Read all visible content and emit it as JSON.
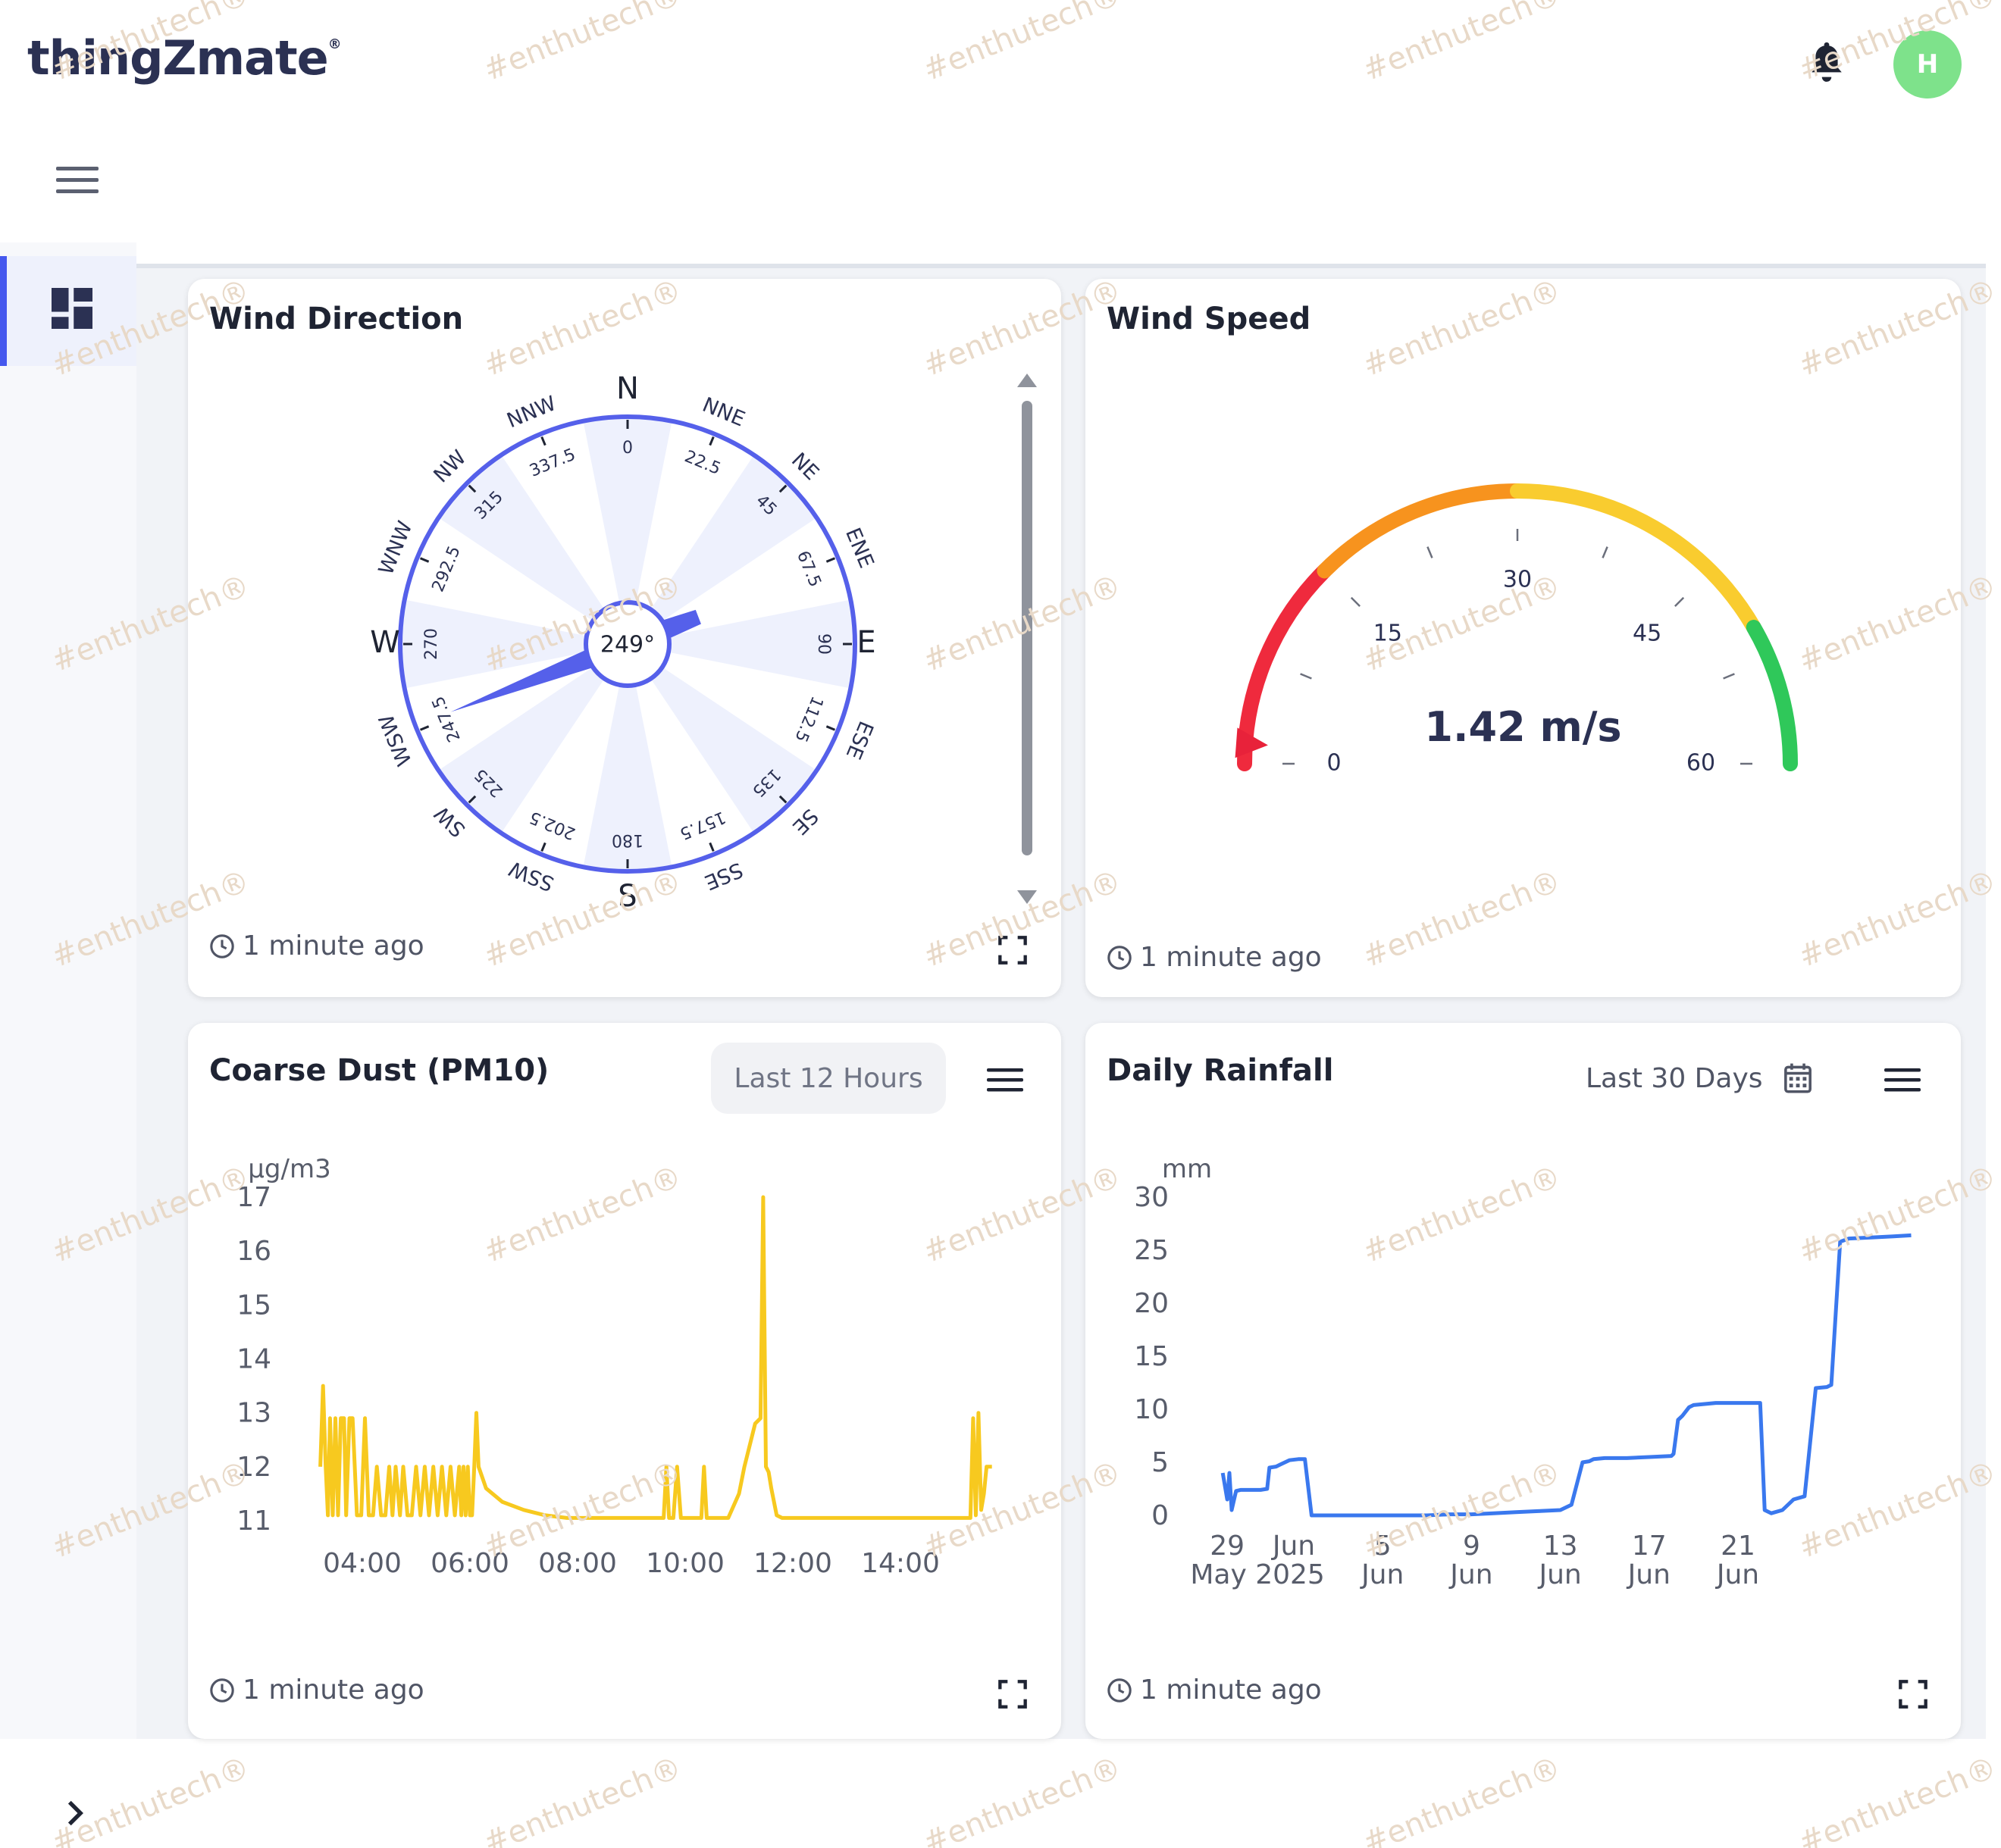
{
  "header": {
    "logo_text": "thingZmate",
    "logo_mark": "®",
    "notifications_icon": "bell-icon",
    "avatar_initial": "H",
    "avatar_color": "#7ee28b"
  },
  "sidebar": {
    "menu_icon": "hamburger-icon",
    "items": [
      {
        "icon": "dashboard-icon",
        "active": true
      }
    ],
    "expand_icon": "chevron-right-icon",
    "accent_color": "#4558ee"
  },
  "watermark": "#enthutech®",
  "widgets": {
    "wind_direction": {
      "title": "Wind Direction",
      "value_deg": 249,
      "value_label": "249°",
      "cardinals": [
        "N",
        "E",
        "S",
        "W"
      ],
      "points": [
        {
          "name": "N",
          "deg": "0"
        },
        {
          "name": "NNE",
          "deg": "22.5"
        },
        {
          "name": "NE",
          "deg": "45"
        },
        {
          "name": "ENE",
          "deg": "67.5"
        },
        {
          "name": "E",
          "deg": "90"
        },
        {
          "name": "ESE",
          "deg": "112.5"
        },
        {
          "name": "SE",
          "deg": "135"
        },
        {
          "name": "SSE",
          "deg": "157.5"
        },
        {
          "name": "S",
          "deg": "180"
        },
        {
          "name": "SSW",
          "deg": "202.5"
        },
        {
          "name": "SW",
          "deg": "225"
        },
        {
          "name": "WSW",
          "deg": "247.5"
        },
        {
          "name": "W",
          "deg": "270"
        },
        {
          "name": "WNW",
          "deg": "292.5"
        },
        {
          "name": "NW",
          "deg": "315"
        },
        {
          "name": "NNW",
          "deg": "337.5"
        }
      ],
      "updated": "1 minute ago",
      "color": "#5560ea"
    },
    "wind_speed": {
      "title": "Wind Speed",
      "value": 1.42,
      "value_label": "1.42 m/s",
      "min": 0,
      "max": 60,
      "ticks": [
        "0",
        "15",
        "30",
        "45",
        "60"
      ],
      "bands": [
        {
          "from": 0,
          "to": 15,
          "color": "#ef2a3d"
        },
        {
          "from": 15,
          "to": 30,
          "color": "#f7931e"
        },
        {
          "from": 30,
          "to": 50,
          "color": "#f9cc2f"
        },
        {
          "from": 50,
          "to": 60,
          "color": "#2fc85a"
        }
      ],
      "pointer_color": "#e8223a",
      "updated": "1 minute ago"
    },
    "coarse_dust": {
      "title": "Coarse Dust (PM10)",
      "range_label": "Last 12 Hours",
      "updated": "1 minute ago"
    },
    "daily_rainfall": {
      "title": "Daily Rainfall",
      "range_label": "Last 30 Days",
      "updated": "1 minute ago"
    }
  },
  "chart_data": [
    {
      "type": "line",
      "title": "Coarse Dust (PM10)",
      "ylabel": "µg/m3",
      "ylim": [
        11,
        17
      ],
      "yticks": [
        "11",
        "12",
        "13",
        "14",
        "15",
        "16",
        "17"
      ],
      "xticks": [
        "04:00",
        "06:00",
        "08:00",
        "10:00",
        "12:00",
        "14:00"
      ],
      "color": "#f7c91f",
      "x_hours": [
        3.22,
        3.27,
        3.32,
        3.36,
        3.4,
        3.45,
        3.5,
        3.55,
        3.6,
        3.66,
        3.7,
        3.76,
        3.82,
        3.9,
        3.98,
        4.05,
        4.12,
        4.2,
        4.27,
        4.35,
        4.43,
        4.5,
        4.56,
        4.62,
        4.7,
        4.76,
        4.84,
        4.92,
        5,
        5.08,
        5.16,
        5.24,
        5.32,
        5.4,
        5.48,
        5.56,
        5.64,
        5.72,
        5.8,
        5.84,
        5.88,
        5.92,
        5.96,
        6,
        6.04,
        6.08,
        6.12,
        6.16,
        6.3,
        6.6,
        7,
        7.4,
        7.8,
        8.2,
        8.6,
        9,
        9.4,
        9.6,
        9.65,
        9.7,
        9.78,
        9.85,
        9.92,
        9.96,
        10.1,
        10.3,
        10.35,
        10.4,
        10.45,
        10.6,
        10.8,
        11,
        11.1,
        11.2,
        11.3,
        11.4,
        11.45,
        11.5,
        11.55,
        11.6,
        11.7,
        11.8,
        11.9,
        12,
        12.5,
        13,
        13.5,
        14,
        14.5,
        15,
        15.2,
        15.3,
        15.35,
        15.4,
        15.45,
        15.5,
        15.55,
        15.6,
        15.7
      ],
      "values": [
        12,
        13.5,
        12,
        11.1,
        12.9,
        11.1,
        12.9,
        11.1,
        12.9,
        12.9,
        11.1,
        12.9,
        12.9,
        11.1,
        11.1,
        12.9,
        11.1,
        11.1,
        12,
        11.1,
        11.1,
        12,
        11.1,
        12,
        11.1,
        12,
        11.1,
        11.1,
        12,
        11.1,
        12,
        11.1,
        12,
        11.1,
        12,
        11.1,
        12,
        11.1,
        12,
        11.1,
        12,
        11.1,
        12,
        11.1,
        11.1,
        12,
        13,
        12,
        11.6,
        11.35,
        11.2,
        11.1,
        11.05,
        11.05,
        11.05,
        11.05,
        11.05,
        11.05,
        12,
        11.05,
        11.05,
        12,
        11.05,
        11.05,
        11.05,
        11.05,
        12,
        11.05,
        11.05,
        11.05,
        11.05,
        11.5,
        12,
        12.4,
        12.8,
        12.9,
        17,
        12,
        11.9,
        11.6,
        11.1,
        11.05,
        11.05,
        11.05,
        11.05,
        11.05,
        11.05,
        11.05,
        11.05,
        11.05,
        11.05,
        11.05,
        12.9,
        11.1,
        13,
        11.2,
        11.5,
        12,
        12
      ]
    },
    {
      "type": "line",
      "title": "Daily Rainfall",
      "ylabel": "mm",
      "ylim": [
        0,
        30
      ],
      "yticks": [
        "0",
        "5",
        "10",
        "15",
        "20",
        "25",
        "30"
      ],
      "xticks": [
        {
          "day": "29",
          "sub": "May 2025"
        },
        {
          "day": "Jun",
          "sub": ""
        },
        {
          "day": "5",
          "sub": "Jun"
        },
        {
          "day": "9",
          "sub": "Jun"
        },
        {
          "day": "13",
          "sub": "Jun"
        },
        {
          "day": "17",
          "sub": "Jun"
        },
        {
          "day": "21",
          "sub": "Jun"
        }
      ],
      "color": "#3a78ee",
      "x_days": [
        -3.2,
        -3,
        -2.9,
        -2.8,
        -2.6,
        -2.4,
        -2,
        -1.5,
        -1.2,
        -1.1,
        -0.8,
        -0.6,
        -0.2,
        0.2,
        0.5,
        0.8,
        2,
        3,
        4,
        5,
        6,
        7,
        8,
        9,
        10,
        11,
        12,
        12.5,
        13,
        13.3,
        13.5,
        14,
        14.5,
        15,
        16,
        17,
        17.1,
        17.3,
        17.5,
        17.8,
        18,
        18.5,
        19,
        19.5,
        20,
        20.3,
        20.5,
        20.8,
        21,
        21.2,
        21.5,
        22,
        22.5,
        23,
        23.5,
        24,
        24.2,
        24.6,
        25,
        26,
        27,
        27.8
      ],
      "values": [
        4,
        1.5,
        4,
        0.5,
        2.3,
        2.4,
        2.4,
        2.4,
        2.5,
        4.5,
        4.6,
        4.8,
        5.2,
        5.3,
        5.3,
        0,
        0,
        0,
        0,
        0,
        0,
        0.1,
        0.1,
        0.2,
        0.3,
        0.4,
        0.5,
        1,
        5,
        5.1,
        5.3,
        5.4,
        5.4,
        5.4,
        5.5,
        5.6,
        5.8,
        9,
        9.4,
        10.2,
        10.4,
        10.5,
        10.6,
        10.6,
        10.6,
        10.6,
        10.6,
        10.6,
        10.6,
        0.5,
        0.2,
        0.5,
        1.5,
        1.8,
        12,
        12.1,
        12.3,
        25.8,
        26.1,
        26.2,
        26.3,
        26.4
      ]
    }
  ]
}
